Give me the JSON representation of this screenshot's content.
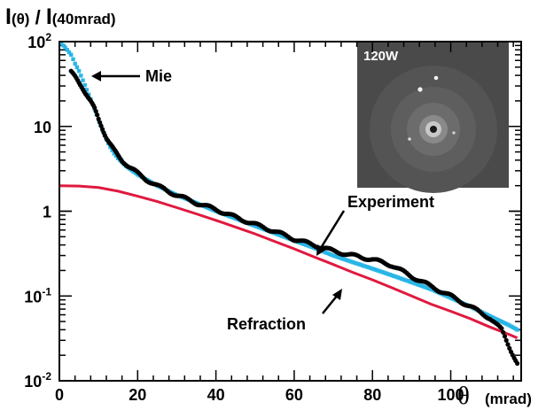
{
  "chart_data": {
    "type": "scatter",
    "title": "",
    "ylabel": {
      "main": "I",
      "arg1": "(θ)",
      "sep": " / ",
      "main2": "I",
      "arg2": "(40mrad)"
    },
    "xlabel": {
      "symbol": "θ",
      "unit": "(mrad)"
    },
    "x_ticks": [
      "0",
      "20",
      "40",
      "60",
      "80",
      "100"
    ],
    "y_ticks": [
      {
        "base": "10",
        "exp": "-2"
      },
      {
        "base": "10",
        "exp": "-1"
      },
      {
        "base": "1",
        "exp": ""
      },
      {
        "base": "10",
        "exp": ""
      },
      {
        "base": "10",
        "exp": "2"
      }
    ],
    "xlim": [
      0,
      118
    ],
    "ylim": [
      0.01,
      100
    ],
    "yscale": "log",
    "grid": false,
    "colors": {
      "experiment": "#000000",
      "mie": "#29b6e6",
      "refraction": "#e0193f",
      "inset_bg": "#4a4a4a"
    },
    "series": [
      {
        "name": "Experiment",
        "key": "experiment",
        "style": "thick-dots",
        "points": [
          [
            3,
            45
          ],
          [
            4,
            38
          ],
          [
            5,
            32
          ],
          [
            6,
            28
          ],
          [
            7,
            24
          ],
          [
            8,
            20
          ],
          [
            9,
            16
          ],
          [
            10,
            12
          ],
          [
            11,
            9.5
          ],
          [
            12,
            7.5
          ],
          [
            13,
            6.2
          ],
          [
            14,
            5.2
          ],
          [
            15,
            4.5
          ],
          [
            16,
            4.0
          ],
          [
            18,
            3.3
          ],
          [
            20,
            2.8
          ],
          [
            22,
            2.4
          ],
          [
            25,
            2.0
          ],
          [
            28,
            1.7
          ],
          [
            30,
            1.55
          ],
          [
            35,
            1.25
          ],
          [
            40,
            1.05
          ],
          [
            45,
            0.85
          ],
          [
            50,
            0.7
          ],
          [
            55,
            0.58
          ],
          [
            60,
            0.47
          ],
          [
            65,
            0.4
          ],
          [
            70,
            0.34
          ],
          [
            75,
            0.3
          ],
          [
            80,
            0.27
          ],
          [
            85,
            0.23
          ],
          [
            90,
            0.17
          ],
          [
            95,
            0.13
          ],
          [
            100,
            0.1
          ],
          [
            105,
            0.075
          ],
          [
            110,
            0.055
          ],
          [
            113,
            0.04
          ],
          [
            115,
            0.025
          ],
          [
            117,
            0.016
          ]
        ]
      },
      {
        "name": "Mie",
        "key": "mie",
        "style": "dots",
        "points": [
          [
            0.5,
            95
          ],
          [
            1,
            90
          ],
          [
            2,
            80
          ],
          [
            3,
            70
          ],
          [
            4,
            55
          ],
          [
            5,
            45
          ],
          [
            6,
            35
          ],
          [
            7,
            27
          ],
          [
            8,
            21
          ],
          [
            9,
            16
          ],
          [
            10,
            12
          ],
          [
            11,
            9
          ],
          [
            12,
            7
          ],
          [
            13,
            5.7
          ],
          [
            14,
            4.8
          ],
          [
            15,
            4.2
          ],
          [
            17,
            3.4
          ],
          [
            20,
            2.7
          ],
          [
            25,
            2.0
          ],
          [
            30,
            1.55
          ],
          [
            35,
            1.25
          ],
          [
            40,
            1.0
          ],
          [
            45,
            0.82
          ],
          [
            50,
            0.67
          ],
          [
            55,
            0.55
          ],
          [
            60,
            0.45
          ],
          [
            65,
            0.37
          ],
          [
            70,
            0.3
          ],
          [
            75,
            0.25
          ],
          [
            80,
            0.21
          ],
          [
            85,
            0.175
          ],
          [
            90,
            0.145
          ],
          [
            95,
            0.12
          ],
          [
            100,
            0.095
          ],
          [
            105,
            0.075
          ],
          [
            110,
            0.058
          ],
          [
            115,
            0.045
          ],
          [
            117,
            0.04
          ]
        ]
      },
      {
        "name": "Refraction",
        "key": "refraction",
        "style": "line",
        "points": [
          [
            0,
            2.0
          ],
          [
            5,
            1.98
          ],
          [
            10,
            1.9
          ],
          [
            15,
            1.72
          ],
          [
            20,
            1.5
          ],
          [
            25,
            1.3
          ],
          [
            30,
            1.1
          ],
          [
            35,
            0.93
          ],
          [
            40,
            0.78
          ],
          [
            45,
            0.65
          ],
          [
            50,
            0.54
          ],
          [
            55,
            0.44
          ],
          [
            60,
            0.36
          ],
          [
            65,
            0.29
          ],
          [
            70,
            0.235
          ],
          [
            75,
            0.19
          ],
          [
            80,
            0.155
          ],
          [
            85,
            0.125
          ],
          [
            90,
            0.1
          ],
          [
            95,
            0.08
          ],
          [
            100,
            0.066
          ],
          [
            105,
            0.054
          ],
          [
            110,
            0.043
          ],
          [
            115,
            0.035
          ],
          [
            117,
            0.032
          ]
        ]
      }
    ],
    "annotations": [
      {
        "key": "mie_label",
        "text": "Mie",
        "points_to": [
          6,
          60
        ]
      },
      {
        "key": "experiment_label",
        "text": "Experiment",
        "points_to": [
          82,
          0.3
        ]
      },
      {
        "key": "refraction_label",
        "text": "Refraction",
        "points_to": [
          83,
          0.145
        ]
      }
    ],
    "inset": {
      "label": "120W"
    }
  }
}
